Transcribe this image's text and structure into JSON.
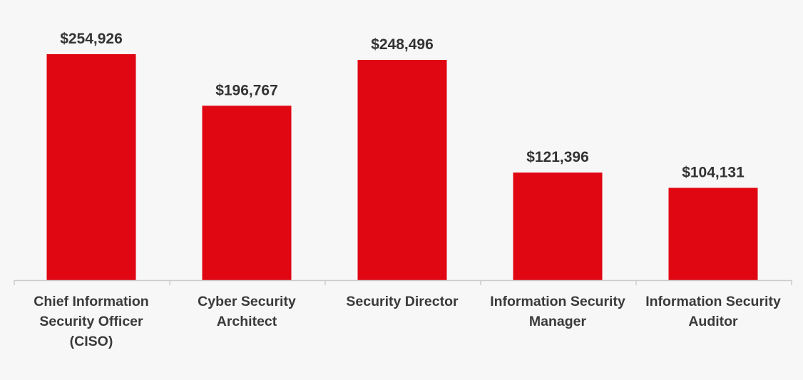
{
  "colors": {
    "background": "#f7f7f7",
    "bar": "#e00612",
    "axis": "#cccccc",
    "text": "#333333"
  },
  "chart_data": {
    "type": "bar",
    "categories": [
      "Chief Information Security Officer (CISO)",
      "Cyber Security Architect",
      "Security Director",
      "Information Security Manager",
      "Information Security Auditor"
    ],
    "category_lines": [
      [
        "Chief Information",
        "Security Officer",
        "(CISO)"
      ],
      [
        "Cyber Security",
        "Architect"
      ],
      [
        "Security Director"
      ],
      [
        "Information Security",
        "Manager"
      ],
      [
        "Information Security",
        "Auditor"
      ]
    ],
    "values": [
      254926,
      196767,
      248496,
      121396,
      104131
    ],
    "value_labels": [
      "$254,926",
      "$196,767",
      "$248,496",
      "$121,396",
      "$104,131"
    ],
    "title": "",
    "xlabel": "",
    "ylabel": "",
    "ylim": [
      0,
      254926
    ],
    "grid": false,
    "legend": "none"
  }
}
